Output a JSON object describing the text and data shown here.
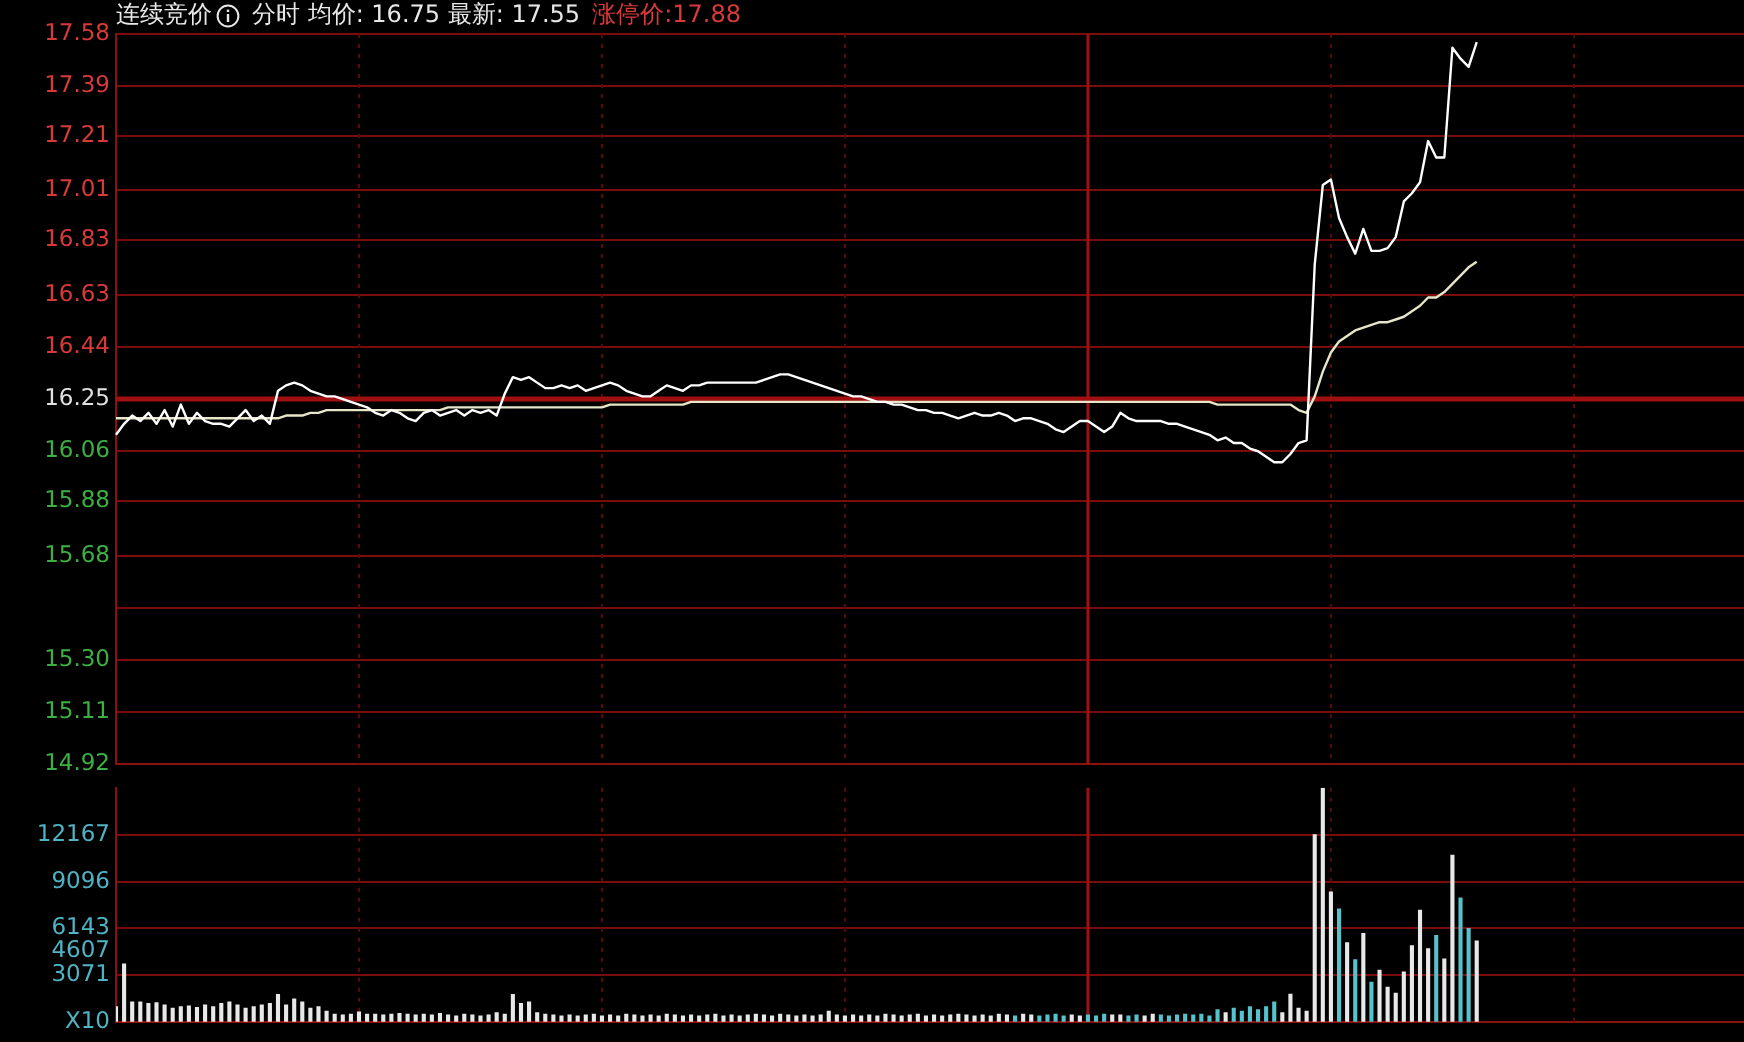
{
  "chart_data": [
    {
      "type": "line",
      "title": "连续竞价",
      "subtitle": "分时 均价: 16.75 最新: 17.55",
      "annotations": [
        "涨停价:17.88"
      ],
      "categories": [
        null,
        null,
        null,
        null,
        null,
        null,
        null,
        null,
        null,
        null,
        null,
        null,
        null,
        null,
        null,
        null,
        null,
        null,
        null,
        null,
        null,
        null,
        null,
        null,
        null,
        null,
        null,
        null,
        null,
        null,
        null,
        null,
        null,
        null,
        null,
        null,
        null,
        null,
        null,
        null,
        null,
        null,
        null,
        null,
        null,
        null,
        null,
        null,
        null,
        null,
        null,
        null,
        null,
        null,
        null,
        null,
        null,
        null,
        null,
        null,
        null,
        null,
        null,
        null,
        null,
        null,
        null,
        null,
        null,
        null,
        null,
        null,
        null,
        null,
        null,
        null,
        null,
        null,
        null,
        null,
        null,
        null,
        null,
        null,
        null,
        null,
        null,
        null,
        null,
        null,
        null,
        null,
        null,
        null,
        null,
        null,
        null,
        null,
        null,
        null,
        null,
        null,
        null,
        null,
        null,
        null,
        null,
        null,
        null,
        null,
        null,
        null,
        null,
        null,
        null,
        null,
        null,
        null,
        null,
        null,
        null,
        null,
        null,
        null,
        null,
        null,
        null,
        null,
        null,
        null,
        null,
        null,
        null,
        null,
        null,
        null,
        null,
        null,
        null,
        null,
        null,
        null,
        null,
        null,
        null,
        null,
        null,
        null,
        null,
        null,
        null,
        null,
        null,
        null,
        null,
        null,
        null,
        null,
        null,
        null,
        null,
        null,
        null,
        null,
        null,
        null,
        null,
        null,
        null,
        null,
        null,
        null,
        null,
        null,
        null,
        null,
        null,
        null,
        null,
        null,
        null,
        null,
        null,
        null,
        null,
        null,
        null,
        null,
        null,
        null,
        null,
        null,
        null,
        null,
        null,
        null,
        null,
        null,
        null,
        null,
        null,
        null
      ],
      "series": [
        {
          "color": "#ffffff",
          "values": [
            16.12,
            16.16,
            16.19,
            16.17,
            16.2,
            16.16,
            16.21,
            16.15,
            16.23,
            16.16,
            16.2,
            16.17,
            16.16,
            16.16,
            16.15,
            16.18,
            16.21,
            16.17,
            16.19,
            16.16,
            16.28,
            16.3,
            16.31,
            16.3,
            16.28,
            16.27,
            16.26,
            16.26,
            16.25,
            16.24,
            16.23,
            16.22,
            16.2,
            16.19,
            16.21,
            16.2,
            16.18,
            16.17,
            16.2,
            16.21,
            16.19,
            16.2,
            16.21,
            16.19,
            16.21,
            16.2,
            16.21,
            16.19,
            16.27,
            16.33,
            16.32,
            16.33,
            16.31,
            16.29,
            16.29,
            16.3,
            16.29,
            16.3,
            16.28,
            16.29,
            16.3,
            16.31,
            16.3,
            16.28,
            16.27,
            16.26,
            16.26,
            16.28,
            16.3,
            16.29,
            16.28,
            16.3,
            16.3,
            16.31,
            16.31,
            16.31,
            16.31,
            16.31,
            16.31,
            16.31,
            16.32,
            16.33,
            16.34,
            16.34,
            16.33,
            16.32,
            16.31,
            16.3,
            16.29,
            16.28,
            16.27,
            16.26,
            16.26,
            16.25,
            16.24,
            16.24,
            16.23,
            16.23,
            16.22,
            16.21,
            16.21,
            16.2,
            16.2,
            16.19,
            16.18,
            16.19,
            16.2,
            16.19,
            16.19,
            16.2,
            16.19,
            16.17,
            16.18,
            16.18,
            16.17,
            16.16,
            16.14,
            16.13,
            16.15,
            16.17,
            16.17,
            16.15,
            16.13,
            16.15,
            16.2,
            16.18,
            16.17,
            16.17,
            16.17,
            16.17,
            16.16,
            16.16,
            16.15,
            16.14,
            16.13,
            16.12,
            16.1,
            16.11,
            16.09,
            16.09,
            16.07,
            16.06,
            16.04,
            16.02,
            16.02,
            16.05,
            16.09,
            16.1,
            16.74,
            17.03,
            17.05,
            16.91,
            16.84,
            16.78,
            16.87,
            16.79,
            16.79,
            16.8,
            16.84,
            16.97,
            17.0,
            17.04,
            17.19,
            17.13,
            17.13,
            17.53,
            17.49,
            17.46,
            17.55,
            null,
            null,
            null,
            null,
            null,
            null,
            null,
            null,
            null,
            null,
            null,
            null,
            null,
            null,
            null,
            null,
            null,
            null,
            null,
            null,
            null,
            null,
            null,
            null,
            null,
            null,
            null,
            null,
            null,
            null,
            null,
            null,
            null
          ]
        },
        {
          "color": "#e8e6c8",
          "values": [
            16.18,
            16.18,
            16.18,
            16.18,
            16.18,
            16.18,
            16.18,
            16.18,
            16.18,
            16.18,
            16.18,
            16.18,
            16.18,
            16.18,
            16.18,
            16.18,
            16.18,
            16.18,
            16.18,
            16.18,
            16.18,
            16.19,
            16.19,
            16.19,
            16.2,
            16.2,
            16.21,
            16.21,
            16.21,
            16.21,
            16.21,
            16.21,
            16.21,
            16.21,
            16.21,
            16.21,
            16.21,
            16.21,
            16.21,
            16.21,
            16.21,
            16.22,
            16.22,
            16.22,
            16.22,
            16.22,
            16.22,
            16.22,
            16.22,
            16.22,
            16.22,
            16.22,
            16.22,
            16.22,
            16.22,
            16.22,
            16.22,
            16.22,
            16.22,
            16.22,
            16.22,
            16.23,
            16.23,
            16.23,
            16.23,
            16.23,
            16.23,
            16.23,
            16.23,
            16.23,
            16.23,
            16.24,
            16.24,
            16.24,
            16.24,
            16.24,
            16.24,
            16.24,
            16.24,
            16.24,
            16.24,
            16.24,
            16.24,
            16.24,
            16.24,
            16.24,
            16.24,
            16.24,
            16.24,
            16.24,
            16.24,
            16.24,
            16.24,
            16.24,
            16.24,
            16.24,
            16.24,
            16.24,
            16.24,
            16.24,
            16.24,
            16.24,
            16.24,
            16.24,
            16.24,
            16.24,
            16.24,
            16.24,
            16.24,
            16.24,
            16.24,
            16.24,
            16.24,
            16.24,
            16.24,
            16.24,
            16.24,
            16.24,
            16.24,
            16.24,
            16.24,
            16.24,
            16.24,
            16.24,
            16.24,
            16.24,
            16.24,
            16.24,
            16.24,
            16.24,
            16.24,
            16.24,
            16.24,
            16.24,
            16.24,
            16.24,
            16.23,
            16.23,
            16.23,
            16.23,
            16.23,
            16.23,
            16.23,
            16.23,
            16.23,
            16.23,
            16.21,
            16.2,
            16.26,
            16.35,
            16.42,
            16.46,
            16.48,
            16.5,
            16.51,
            16.52,
            16.53,
            16.53,
            16.54,
            16.55,
            16.57,
            16.59,
            16.62,
            16.62,
            16.64,
            16.67,
            16.7,
            16.73,
            16.75,
            null,
            null,
            null,
            null,
            null,
            null,
            null,
            null,
            null,
            null,
            null,
            null,
            null,
            null,
            null,
            null,
            null,
            null,
            null,
            null,
            null,
            null,
            null,
            null,
            null,
            null,
            null,
            null,
            null,
            null,
            null,
            null,
            null
          ]
        }
      ],
      "ylim": [
        14.92,
        17.58
      ],
      "yticks": [
        14.92,
        15.11,
        {
          "value": 15.3,
          "label": "15.30"
        },
        {
          "value": 15.49,
          "label": null
        },
        15.68,
        15.88,
        16.06,
        16.25,
        16.44,
        16.63,
        16.83,
        17.01,
        17.21,
        17.39,
        17.58
      ],
      "ref_lines": [
        {
          "axis": "y",
          "value": 16.25,
          "color": "#a01010"
        }
      ],
      "grid": true,
      "tick_labels": "y"
    },
    {
      "type": "bar",
      "categories": [
        null,
        null,
        null,
        null,
        null,
        null,
        null,
        null,
        null,
        null,
        null,
        null,
        null,
        null,
        null,
        null,
        null,
        null,
        null,
        null,
        null,
        null,
        null,
        null,
        null,
        null,
        null,
        null,
        null,
        null,
        null,
        null,
        null,
        null,
        null,
        null,
        null,
        null,
        null,
        null,
        null,
        null,
        null,
        null,
        null,
        null,
        null,
        null,
        null,
        null,
        null,
        null,
        null,
        null,
        null,
        null,
        null,
        null,
        null,
        null,
        null,
        null,
        null,
        null,
        null,
        null,
        null,
        null,
        null,
        null,
        null,
        null,
        null,
        null,
        null,
        null,
        null,
        null,
        null,
        null,
        null,
        null,
        null,
        null,
        null,
        null,
        null,
        null,
        null,
        null,
        null,
        null,
        null,
        null,
        null,
        null,
        null,
        null,
        null,
        null,
        null,
        null,
        null,
        null,
        null,
        null,
        null,
        null,
        null,
        null,
        null,
        null,
        null,
        null,
        null,
        null,
        null,
        null,
        null,
        null,
        null,
        null,
        null,
        null,
        null,
        null,
        null,
        null,
        null,
        null,
        null,
        null,
        null,
        null,
        null,
        null,
        null,
        null,
        null,
        null,
        null,
        null,
        null,
        null,
        null,
        null,
        null,
        null,
        null,
        null,
        null,
        null,
        null,
        null,
        null,
        null,
        null,
        null,
        null,
        null,
        null,
        null,
        null,
        null,
        null,
        null,
        null,
        null,
        null,
        null,
        null,
        null,
        null,
        null,
        null,
        null,
        null,
        null,
        null,
        null,
        null,
        null,
        null,
        null,
        null,
        null,
        null,
        null,
        null,
        null,
        null,
        null,
        null,
        null,
        null,
        null,
        null,
        null,
        null,
        null,
        null,
        null
      ],
      "values": [
        990,
        3770,
        1300,
        1300,
        1200,
        1250,
        1100,
        900,
        1000,
        1050,
        950,
        1100,
        1000,
        1200,
        1300,
        1100,
        900,
        1000,
        1100,
        1200,
        1785,
        1100,
        1500,
        1300,
        900,
        1000,
        700,
        500,
        450,
        500,
        650,
        500,
        500,
        450,
        500,
        550,
        500,
        450,
        500,
        450,
        550,
        450,
        400,
        500,
        450,
        400,
        450,
        600,
        500,
        1785,
        1200,
        1300,
        600,
        500,
        450,
        400,
        450,
        400,
        450,
        500,
        400,
        450,
        400,
        500,
        450,
        400,
        450,
        400,
        500,
        450,
        400,
        450,
        400,
        450,
        500,
        400,
        450,
        400,
        450,
        500,
        450,
        400,
        500,
        450,
        400,
        450,
        400,
        450,
        700,
        450,
        400,
        450,
        400,
        450,
        400,
        500,
        450,
        400,
        450,
        500,
        400,
        450,
        400,
        450,
        500,
        450,
        400,
        450,
        400,
        500,
        450,
        400,
        500,
        450,
        400,
        450,
        500,
        400,
        450,
        400,
        450,
        400,
        500,
        450,
        450,
        400,
        450,
        400,
        500,
        450,
        400,
        450,
        500,
        450,
        500,
        400,
        800,
        600,
        900,
        700,
        1000,
        800,
        1000,
        1300,
        600,
        1800,
        900,
        700,
        12170,
        15190,
        8450,
        7340,
        5150,
        4050,
        5750,
        2580,
        3370,
        2260,
        1870,
        3250,
        4960,
        7260,
        4760,
        5630,
        4090,
        10830,
        8060,
        6070,
        5270,
        null,
        null,
        null,
        null,
        null,
        null,
        null,
        null,
        null,
        null,
        null,
        null,
        null,
        null,
        null,
        null,
        null,
        null,
        null,
        null,
        null,
        null,
        null,
        null,
        null,
        null,
        null,
        null,
        null,
        null,
        null,
        null,
        null
      ],
      "colors": [
        "#e8e8e8",
        "#e8e8e8",
        "#e8e8e8",
        "#e8e8e8",
        "#e8e8e8",
        "#e8e8e8",
        "#e8e8e8",
        "#e8e8e8",
        "#e8e8e8",
        "#e8e8e8",
        "#e8e8e8",
        "#e8e8e8",
        "#e8e8e8",
        "#e8e8e8",
        "#e8e8e8",
        "#e8e8e8",
        "#e8e8e8",
        "#e8e8e8",
        "#e8e8e8",
        "#e8e8e8",
        "#e8e8e8",
        "#e8e8e8",
        "#e8e8e8",
        "#e8e8e8",
        "#e8e8e8",
        "#e8e8e8",
        "#e8e8e8",
        "#e8e8e8",
        "#e8e8e8",
        "#e8e8e8",
        "#e8e8e8",
        "#e8e8e8",
        "#e8e8e8",
        "#e8e8e8",
        "#e8e8e8",
        "#e8e8e8",
        "#e8e8e8",
        "#e8e8e8",
        "#e8e8e8",
        "#e8e8e8",
        "#e8e8e8",
        "#e8e8e8",
        "#e8e8e8",
        "#e8e8e8",
        "#e8e8e8",
        "#e8e8e8",
        "#e8e8e8",
        "#e8e8e8",
        "#e8e8e8",
        "#e8e8e8",
        "#e8e8e8",
        "#e8e8e8",
        "#e8e8e8",
        "#e8e8e8",
        "#e8e8e8",
        "#e8e8e8",
        "#e8e8e8",
        "#e8e8e8",
        "#e8e8e8",
        "#e8e8e8",
        "#e8e8e8",
        "#e8e8e8",
        "#e8e8e8",
        "#e8e8e8",
        "#e8e8e8",
        "#e8e8e8",
        "#e8e8e8",
        "#e8e8e8",
        "#e8e8e8",
        "#e8e8e8",
        "#e8e8e8",
        "#e8e8e8",
        "#e8e8e8",
        "#e8e8e8",
        "#e8e8e8",
        "#e8e8e8",
        "#e8e8e8",
        "#e8e8e8",
        "#e8e8e8",
        "#e8e8e8",
        "#e8e8e8",
        "#e8e8e8",
        "#e8e8e8",
        "#e8e8e8",
        "#e8e8e8",
        "#e8e8e8",
        "#e8e8e8",
        "#e8e8e8",
        "#e8e8e8",
        "#e8e8e8",
        "#e8e8e8",
        "#e8e8e8",
        "#e8e8e8",
        "#e8e8e8",
        "#e8e8e8",
        "#e8e8e8",
        "#e8e8e8",
        "#e8e8e8",
        "#e8e8e8",
        "#e8e8e8",
        "#e8e8e8",
        "#e8e8e8",
        "#e8e8e8",
        "#e8e8e8",
        "#e8e8e8",
        "#e8e8e8",
        "#e8e8e8",
        "#e8e8e8",
        "#e8e8e8",
        "#e8e8e8",
        "#e8e8e8",
        "#56c2cc",
        "#e8e8e8",
        "#e8e8e8",
        "#56c2cc",
        "#56c2cc",
        "#56c2cc",
        "#56c2cc",
        "#e8e8e8",
        "#e8e8e8",
        "#56c2cc",
        "#56c2cc",
        "#56c2cc",
        "#e8e8e8",
        "#e8e8e8",
        "#56c2cc",
        "#56c2cc",
        "#e8e8e8",
        "#e8e8e8",
        "#56c2cc",
        "#56c2cc",
        "#56c2cc",
        "#56c2cc",
        "#56c2cc",
        "#56c2cc",
        "#56c2cc",
        "#56c2cc",
        "#e8e8e8",
        "#56c2cc",
        "#56c2cc",
        "#56c2cc",
        "#56c2cc",
        "#56c2cc",
        "#56c2cc",
        "#e8e8e8",
        "#e8e8e8",
        "#e8e8e8",
        "#e8e8e8",
        "#e8e8e8",
        "#e8e8e8",
        "#e8e8e8",
        "#56c2cc",
        "#e8e8e8",
        "#56c2cc",
        "#e8e8e8",
        "#56c2cc",
        "#e8e8e8",
        "#e8e8e8",
        "#e8e8e8",
        "#e8e8e8",
        "#e8e8e8",
        "#e8e8e8",
        "#e8e8e8",
        "#56c2cc",
        "#e8e8e8",
        "#e8e8e8",
        "#56c2cc",
        "#56c2cc",
        "#e8e8e8",
        null,
        null,
        null,
        null,
        null,
        null,
        null,
        null,
        null,
        null,
        null,
        null,
        null,
        null,
        null,
        null,
        null,
        null,
        null,
        null,
        null,
        null,
        null,
        null,
        null,
        null,
        null,
        null,
        null,
        null,
        null,
        null,
        null
      ],
      "ylim": [
        0,
        15230
      ],
      "yticks": [
        {
          "value": 0,
          "label": "X10"
        },
        3071,
        {
          "value": 4607,
          "label": "4607"
        },
        6143,
        9096,
        12167
      ],
      "grid": true,
      "tick_labels": "y"
    }
  ]
}
